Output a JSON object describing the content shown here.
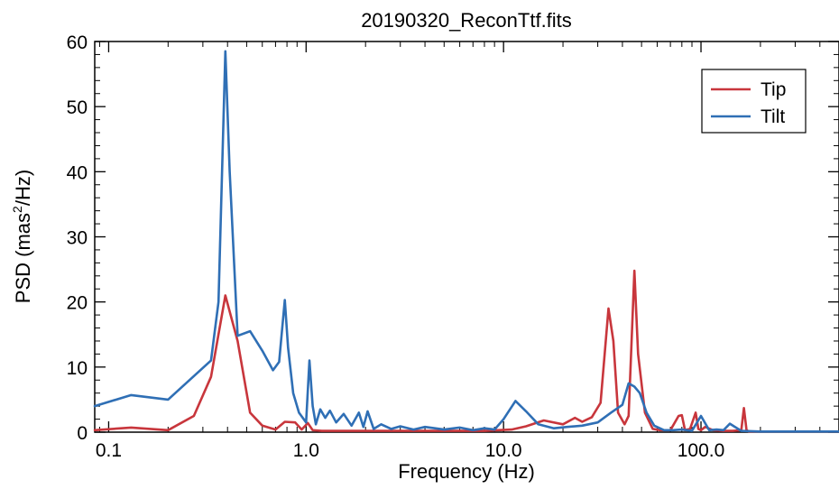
{
  "chart_data": {
    "type": "line",
    "title": "20190320_ReconTtf.fits",
    "xlabel": "Frequency (Hz)",
    "ylabel_main": "PSD (mas",
    "ylabel_sup": "2",
    "ylabel_tail": "/Hz)",
    "x_scale": "log",
    "xlim": [
      0.085,
      500
    ],
    "ylim": [
      0,
      60
    ],
    "x_ticks": [
      {
        "value": 0.1,
        "label": "0.1"
      },
      {
        "value": 1,
        "label": "1.0"
      },
      {
        "value": 10,
        "label": "10.0"
      },
      {
        "value": 100,
        "label": "100.0"
      }
    ],
    "y_ticks": [
      {
        "value": 0,
        "label": "0"
      },
      {
        "value": 10,
        "label": "10"
      },
      {
        "value": 20,
        "label": "20"
      },
      {
        "value": 30,
        "label": "30"
      },
      {
        "value": 40,
        "label": "40"
      },
      {
        "value": 50,
        "label": "50"
      },
      {
        "value": 60,
        "label": "60"
      }
    ],
    "grid": false,
    "legend_position": "top-right",
    "series": [
      {
        "name": "Tip",
        "color": "#c8363c",
        "x": [
          0.085,
          0.13,
          0.2,
          0.27,
          0.33,
          0.39,
          0.45,
          0.52,
          0.6,
          0.7,
          0.78,
          0.88,
          0.95,
          1.02,
          1.08,
          1.2,
          1.5,
          2,
          3,
          5,
          8,
          11,
          13,
          16,
          20,
          23,
          25,
          28,
          31,
          34,
          36,
          38,
          41,
          43,
          46,
          48,
          52,
          57,
          62,
          70,
          77,
          80,
          83,
          88,
          94,
          97,
          100,
          105,
          115,
          130,
          145,
          160,
          165,
          170,
          175,
          500
        ],
        "y": [
          0.3,
          0.7,
          0.3,
          2.5,
          8.5,
          21,
          14,
          3,
          1,
          0.4,
          1.6,
          1.5,
          0.4,
          1.4,
          0.3,
          0.2,
          0.2,
          0.2,
          0.2,
          0.2,
          0.2,
          0.4,
          0.9,
          1.8,
          1.2,
          2.2,
          1.6,
          2.3,
          4.5,
          19,
          14,
          3,
          1.2,
          2.5,
          24.8,
          12,
          3,
          0.5,
          0.3,
          0.3,
          2.5,
          2.6,
          0.3,
          0.5,
          3,
          0.5,
          0.3,
          0.8,
          0.3,
          0.2,
          0.2,
          0.3,
          3.7,
          0.3,
          0.1,
          0.1
        ]
      },
      {
        "name": "Tilt",
        "color": "#2f6fb5",
        "x": [
          0.085,
          0.13,
          0.2,
          0.33,
          0.36,
          0.39,
          0.41,
          0.45,
          0.52,
          0.6,
          0.68,
          0.73,
          0.78,
          0.81,
          0.86,
          0.92,
          1,
          1.04,
          1.08,
          1.12,
          1.18,
          1.25,
          1.32,
          1.42,
          1.55,
          1.7,
          1.85,
          1.95,
          2.05,
          2.2,
          2.4,
          2.7,
          3,
          3.5,
          4,
          5,
          6,
          7,
          8,
          9,
          10,
          11.5,
          13,
          15,
          18,
          21,
          25,
          30,
          35,
          40,
          43,
          46,
          49,
          53,
          58,
          65,
          72,
          80,
          90,
          100,
          110,
          120,
          130,
          140,
          160,
          200,
          500
        ],
        "y": [
          4,
          5.7,
          5,
          11,
          20,
          58.5,
          40,
          14.8,
          15.5,
          12.5,
          9.5,
          10.8,
          20.3,
          13,
          6,
          3,
          1.5,
          11,
          4,
          1.2,
          3.5,
          2.2,
          3.3,
          1.5,
          2.8,
          1,
          3,
          0.8,
          3.2,
          0.5,
          1.2,
          0.5,
          0.9,
          0.4,
          0.8,
          0.4,
          0.7,
          0.3,
          0.6,
          0.4,
          2,
          4.8,
          3.2,
          1.2,
          0.6,
          0.8,
          1,
          1.5,
          3,
          4.2,
          7.5,
          7,
          6,
          3,
          1,
          0.3,
          0.3,
          0.4,
          0.2,
          2.5,
          0.3,
          0.4,
          0.3,
          1.3,
          0.2,
          0.1,
          0.1
        ]
      }
    ]
  }
}
